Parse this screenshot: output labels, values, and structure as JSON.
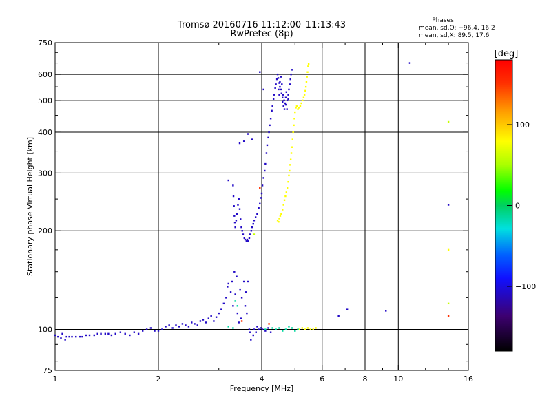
{
  "chart_data": {
    "type": "scatter",
    "title": "Tromsø 20160716 11:12:00–11:13:43",
    "subtitle": "RwPretec (8p)",
    "xlabel": "Frequency [MHz]",
    "ylabel": "Stationary phase Virtual Height [km]",
    "x_scale": "log",
    "y_scale": "log",
    "xlim": [
      1,
      16
    ],
    "ylim": [
      75,
      750
    ],
    "x_ticks": [
      1,
      2,
      4,
      6,
      8,
      10,
      16
    ],
    "x_tick_labels": [
      "1",
      "2",
      "4",
      "6",
      "8",
      "10",
      "16"
    ],
    "y_ticks": [
      75,
      100,
      200,
      300,
      400,
      500,
      600,
      750
    ],
    "y_tick_labels": [
      "75",
      "100",
      "200",
      "300",
      "400",
      "500",
      "600",
      "750"
    ],
    "grid_x": [
      2,
      4,
      6,
      8,
      10
    ],
    "grid_y": [
      100,
      200,
      300,
      400,
      500,
      600
    ],
    "stats": {
      "title": "Phases",
      "line1": "mean, sd,O: −96.4, 16.2",
      "line2": "mean, sd,X:  89.5, 17.6"
    },
    "colorbar": {
      "label": "[deg]",
      "range": [
        -180,
        180
      ],
      "ticks": [
        100,
        0,
        -100
      ],
      "tick_labels": [
        "100",
        "0",
        "−100"
      ]
    },
    "series": [
      {
        "phase": -110,
        "points": [
          [
            1.0,
            96
          ],
          [
            1.02,
            95
          ],
          [
            1.04,
            94
          ],
          [
            1.05,
            97
          ],
          [
            1.07,
            93
          ],
          [
            1.08,
            95
          ],
          [
            1.1,
            95
          ],
          [
            1.12,
            95
          ],
          [
            1.15,
            95
          ],
          [
            1.18,
            95
          ],
          [
            1.2,
            95
          ],
          [
            1.23,
            96
          ],
          [
            1.26,
            96
          ],
          [
            1.3,
            96
          ],
          [
            1.33,
            97
          ],
          [
            1.36,
            97
          ],
          [
            1.4,
            97
          ],
          [
            1.43,
            97
          ],
          [
            1.46,
            96
          ],
          [
            1.5,
            97
          ],
          [
            1.55,
            98
          ],
          [
            1.6,
            97
          ],
          [
            1.65,
            96
          ],
          [
            1.7,
            98
          ],
          [
            1.75,
            97
          ],
          [
            1.8,
            99
          ],
          [
            1.85,
            100
          ],
          [
            1.9,
            101
          ],
          [
            1.95,
            99
          ],
          [
            2.0,
            99
          ],
          [
            2.05,
            100
          ],
          [
            2.1,
            102
          ],
          [
            2.15,
            103
          ],
          [
            2.2,
            101
          ],
          [
            2.25,
            103
          ],
          [
            2.3,
            102
          ],
          [
            2.35,
            104
          ],
          [
            2.4,
            103
          ],
          [
            2.45,
            102
          ],
          [
            2.5,
            105
          ],
          [
            2.55,
            104
          ],
          [
            2.6,
            103
          ],
          [
            2.65,
            106
          ],
          [
            2.7,
            107
          ],
          [
            2.75,
            105
          ],
          [
            2.8,
            108
          ],
          [
            2.85,
            110
          ],
          [
            2.9,
            106
          ],
          [
            2.95,
            109
          ],
          [
            3.0,
            112
          ],
          [
            3.05,
            115
          ],
          [
            3.1,
            120
          ],
          [
            3.15,
            125
          ],
          [
            3.18,
            135
          ],
          [
            3.2,
            138
          ],
          [
            3.25,
            130
          ],
          [
            3.28,
            140
          ],
          [
            3.3,
            118
          ],
          [
            3.33,
            150
          ],
          [
            3.35,
            128
          ],
          [
            3.38,
            145
          ],
          [
            3.4,
            112
          ],
          [
            3.43,
            105
          ],
          [
            3.46,
            132
          ],
          [
            3.48,
            108
          ],
          [
            3.5,
            125
          ],
          [
            3.55,
            140
          ],
          [
            3.58,
            118
          ],
          [
            3.6,
            130
          ],
          [
            3.62,
            112
          ],
          [
            3.65,
            140
          ],
          [
            3.68,
            100
          ],
          [
            3.7,
            98
          ],
          [
            3.72,
            93
          ],
          [
            3.78,
            96
          ],
          [
            3.8,
            100
          ],
          [
            3.85,
            98
          ],
          [
            3.88,
            102
          ],
          [
            3.92,
            100
          ],
          [
            3.97,
            101
          ],
          [
            4.02,
            100
          ],
          [
            4.1,
            99
          ],
          [
            4.18,
            101
          ],
          [
            4.25,
            98
          ],
          [
            3.3,
            275
          ],
          [
            3.31,
            255
          ],
          [
            3.32,
            238
          ],
          [
            3.33,
            222
          ],
          [
            3.34,
            212
          ],
          [
            3.35,
            205
          ],
          [
            3.37,
            215
          ],
          [
            3.39,
            225
          ],
          [
            3.41,
            240
          ],
          [
            3.43,
            250
          ],
          [
            3.45,
            233
          ],
          [
            3.47,
            217
          ],
          [
            3.49,
            205
          ],
          [
            3.51,
            200
          ],
          [
            3.53,
            195
          ],
          [
            3.56,
            190
          ],
          [
            3.58,
            188
          ],
          [
            3.61,
            186
          ],
          [
            3.63,
            188
          ],
          [
            3.65,
            186
          ],
          [
            3.68,
            190
          ],
          [
            3.7,
            195
          ],
          [
            3.73,
            200
          ],
          [
            3.75,
            205
          ],
          [
            3.78,
            210
          ],
          [
            3.8,
            215
          ],
          [
            3.84,
            220
          ],
          [
            3.88,
            225
          ],
          [
            3.92,
            235
          ],
          [
            3.95,
            242
          ],
          [
            3.98,
            252
          ],
          [
            4.0,
            260
          ],
          [
            4.02,
            275
          ],
          [
            4.05,
            290
          ],
          [
            4.08,
            305
          ],
          [
            4.1,
            320
          ],
          [
            4.13,
            345
          ],
          [
            4.15,
            365
          ],
          [
            4.18,
            385
          ],
          [
            4.2,
            400
          ],
          [
            4.22,
            420
          ],
          [
            4.25,
            440
          ],
          [
            4.28,
            465
          ],
          [
            4.3,
            480
          ],
          [
            4.33,
            505
          ],
          [
            4.35,
            520
          ],
          [
            4.38,
            545
          ],
          [
            4.4,
            560
          ],
          [
            4.43,
            580
          ],
          [
            4.45,
            600
          ],
          [
            4.47,
            585
          ],
          [
            4.5,
            565
          ],
          [
            4.52,
            550
          ],
          [
            4.55,
            540
          ],
          [
            4.57,
            525
          ],
          [
            4.6,
            510
          ],
          [
            4.62,
            520
          ],
          [
            4.65,
            500
          ],
          [
            4.68,
            490
          ],
          [
            4.7,
            510
          ],
          [
            4.72,
            530
          ],
          [
            4.75,
            500
          ],
          [
            4.78,
            520
          ],
          [
            4.8,
            540
          ],
          [
            4.83,
            560
          ],
          [
            4.85,
            580
          ],
          [
            4.87,
            600
          ],
          [
            4.9,
            620
          ],
          [
            4.48,
            540
          ],
          [
            4.5,
            520
          ],
          [
            4.52,
            570
          ],
          [
            4.55,
            590
          ],
          [
            4.58,
            560
          ],
          [
            4.6,
            495
          ],
          [
            4.63,
            480
          ],
          [
            4.66,
            470
          ],
          [
            4.7,
            485
          ],
          [
            4.74,
            470
          ],
          [
            4.78,
            505
          ],
          [
            3.2,
            285
          ],
          [
            3.45,
            370
          ],
          [
            3.55,
            375
          ],
          [
            3.65,
            395
          ],
          [
            3.75,
            380
          ],
          [
            3.95,
            610
          ],
          [
            4.05,
            540
          ],
          [
            6.7,
            110
          ],
          [
            7.1,
            115
          ],
          [
            9.2,
            114
          ],
          [
            10.8,
            650
          ],
          [
            14.0,
            240
          ]
        ]
      },
      {
        "phase": 80,
        "points": [
          [
            4.45,
            215
          ],
          [
            4.48,
            213
          ],
          [
            4.5,
            218
          ],
          [
            4.53,
            222
          ],
          [
            4.56,
            225
          ],
          [
            4.6,
            232
          ],
          [
            4.63,
            240
          ],
          [
            4.66,
            248
          ],
          [
            4.69,
            255
          ],
          [
            4.72,
            262
          ],
          [
            4.75,
            270
          ],
          [
            4.78,
            282
          ],
          [
            4.8,
            295
          ],
          [
            4.82,
            305
          ],
          [
            4.84,
            318
          ],
          [
            4.86,
            330
          ],
          [
            4.88,
            345
          ],
          [
            4.9,
            360
          ],
          [
            4.92,
            380
          ],
          [
            4.94,
            400
          ],
          [
            4.96,
            420
          ],
          [
            4.98,
            440
          ],
          [
            5.0,
            460
          ],
          [
            5.03,
            475
          ],
          [
            5.06,
            480
          ],
          [
            5.1,
            470
          ],
          [
            5.14,
            475
          ],
          [
            5.18,
            480
          ],
          [
            5.22,
            490
          ],
          [
            5.26,
            500
          ],
          [
            5.3,
            510
          ],
          [
            5.33,
            520
          ],
          [
            5.36,
            535
          ],
          [
            5.38,
            550
          ],
          [
            5.4,
            570
          ],
          [
            5.42,
            590
          ],
          [
            5.44,
            610
          ],
          [
            5.46,
            635
          ],
          [
            5.48,
            645
          ],
          [
            5.15,
            100
          ],
          [
            5.25,
            101
          ],
          [
            5.35,
            100
          ],
          [
            5.45,
            101
          ],
          [
            5.55,
            100
          ],
          [
            5.65,
            100
          ],
          [
            5.75,
            101
          ],
          [
            14.0,
            175
          ]
        ]
      },
      {
        "phase": -15,
        "points": [
          [
            3.2,
            102
          ],
          [
            3.3,
            101
          ],
          [
            4.1,
            100
          ],
          [
            4.3,
            101
          ],
          [
            4.4,
            100
          ],
          [
            4.5,
            101
          ],
          [
            4.6,
            99
          ],
          [
            4.7,
            100
          ],
          [
            4.8,
            102
          ],
          [
            4.9,
            101
          ],
          [
            5.0,
            99
          ],
          [
            5.1,
            100
          ],
          [
            3.35,
            122
          ],
          [
            3.4,
            118
          ]
        ]
      },
      {
        "phase": 60,
        "points": [
          [
            14.0,
            430
          ],
          [
            14.0,
            120
          ],
          [
            3.8,
            195
          ]
        ]
      },
      {
        "phase": 150,
        "points": [
          [
            14.0,
            110
          ],
          [
            3.5,
            106
          ],
          [
            4.2,
            104
          ],
          [
            3.95,
            270
          ]
        ]
      }
    ]
  }
}
